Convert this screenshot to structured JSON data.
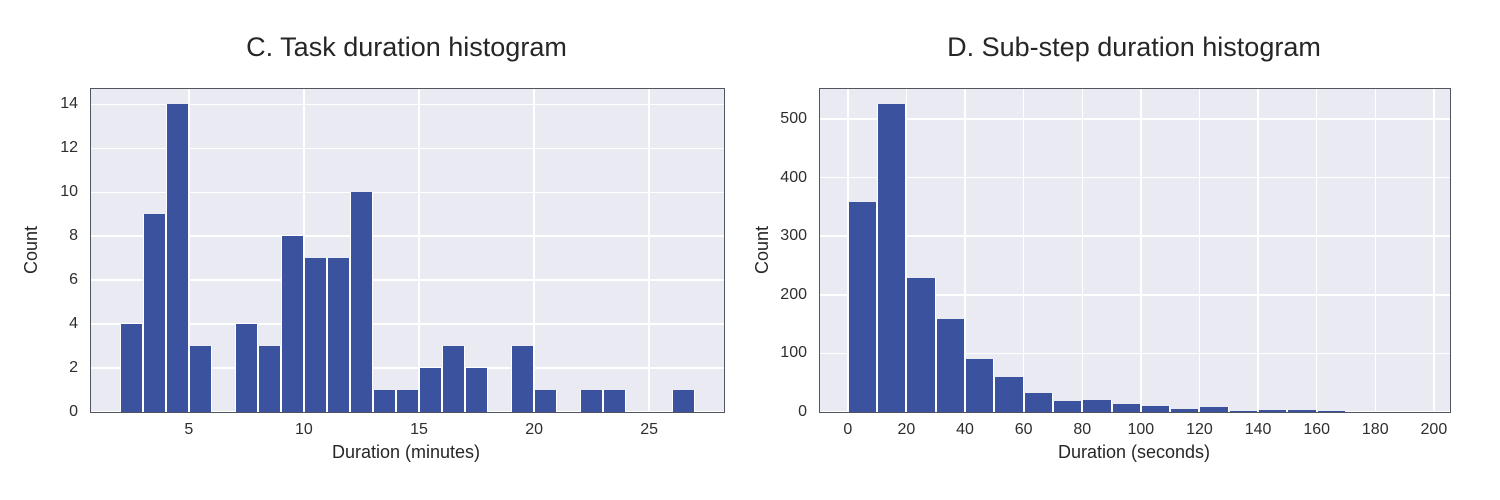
{
  "figure": {
    "background": "#ffffff",
    "grid_color": "#ffffff",
    "text_color": "#262626"
  },
  "chart_data": [
    {
      "type": "bar",
      "subtype": "histogram",
      "title": "C. Task duration histogram",
      "xlabel": "Duration (minutes)",
      "ylabel": "Count",
      "bar_color": "#3b529e",
      "plot_bg": "#eaeaf2",
      "bin_start": 2,
      "bin_width": 1,
      "counts": [
        4,
        9,
        14,
        3,
        0,
        4,
        3,
        8,
        7,
        7,
        10,
        1,
        1,
        2,
        3,
        2,
        0,
        3,
        1,
        0,
        1,
        1,
        0,
        0,
        1
      ],
      "xticks": [
        5,
        10,
        15,
        20,
        25
      ],
      "yticks": [
        0,
        2,
        4,
        6,
        8,
        10,
        12,
        14
      ],
      "xlim": [
        0.75,
        28.25
      ],
      "ylim": [
        0,
        14.7
      ],
      "grid": true,
      "legend": null
    },
    {
      "type": "bar",
      "subtype": "histogram",
      "title": "D. Sub-step duration histogram",
      "xlabel": "Duration (seconds)",
      "ylabel": "Count",
      "bar_color": "#3b529e",
      "plot_bg": "#eaeaf2",
      "bin_start": 0,
      "bin_width": 10,
      "counts": [
        358,
        525,
        228,
        158,
        90,
        60,
        33,
        18,
        20,
        14,
        11,
        5,
        9,
        2,
        4,
        4,
        2
      ],
      "xticks": [
        0,
        20,
        40,
        60,
        80,
        100,
        120,
        140,
        160,
        180,
        200
      ],
      "yticks": [
        0,
        100,
        200,
        300,
        400,
        500
      ],
      "xlim": [
        -9.5,
        205.5
      ],
      "ylim": [
        0,
        551
      ],
      "grid": true,
      "legend": null
    }
  ]
}
